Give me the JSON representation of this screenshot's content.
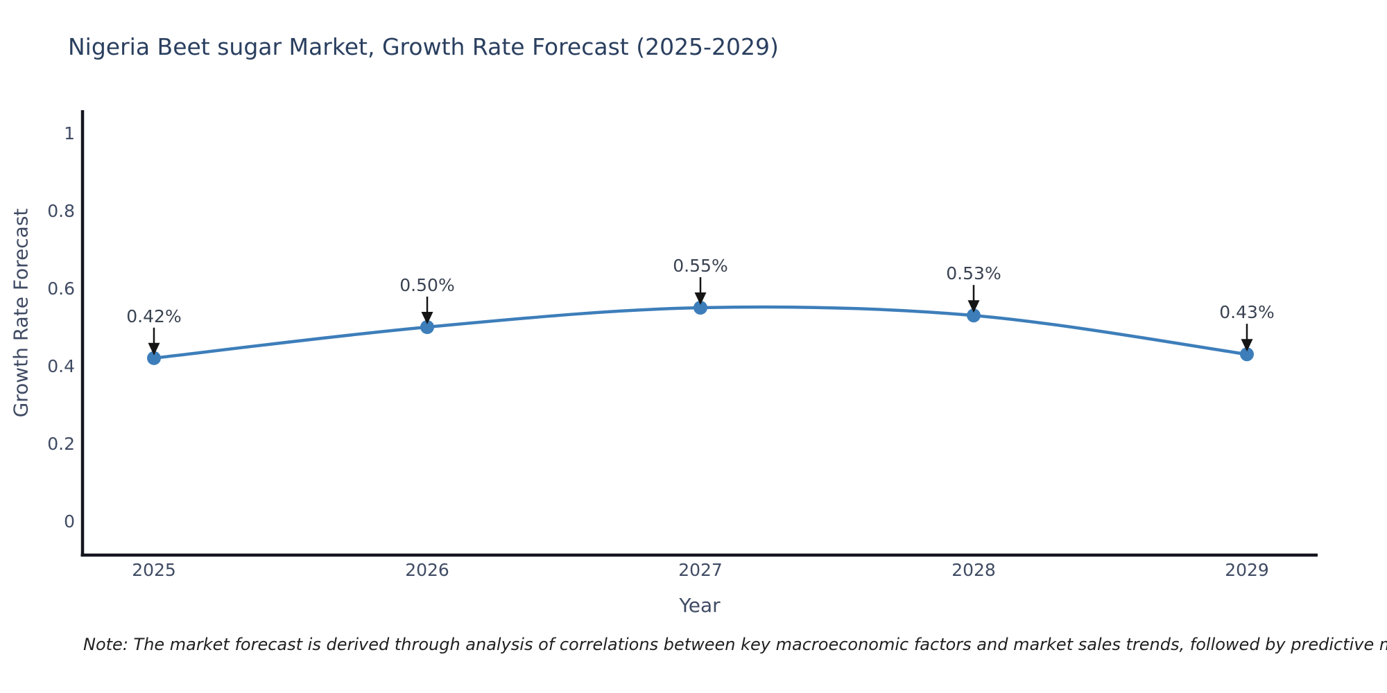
{
  "chart_data": {
    "type": "line",
    "title": "Nigeria Beet sugar Market, Growth Rate Forecast (2025-2029)",
    "xlabel": "Year",
    "ylabel": "Growth Rate Forecast",
    "categories": [
      "2025",
      "2026",
      "2027",
      "2028",
      "2029"
    ],
    "series": [
      {
        "name": "Growth Rate Forecast",
        "values": [
          0.42,
          0.5,
          0.55,
          0.53,
          0.43
        ]
      }
    ],
    "point_labels": [
      "0.42%",
      "0.50%",
      "0.55%",
      "0.53%",
      "0.43%"
    ],
    "y_ticks": [
      "0",
      "0.2",
      "0.4",
      "0.6",
      "0.8",
      "1"
    ],
    "ylim": [
      -0.09,
      1.06
    ],
    "grid": false,
    "legend_position": "none",
    "line_color": "#3d7eba",
    "marker_color": "#3d7eba",
    "annotation_arrow_color": "#151515",
    "annotation_text_color": "#3a4352",
    "tick_color": "#3f4b63",
    "spine_color": "#15151f"
  },
  "note": "Note: The market forecast is derived through analysis of correlations between key macroeconomic factors and market sales trends, followed by predictive modeling to project future sales"
}
